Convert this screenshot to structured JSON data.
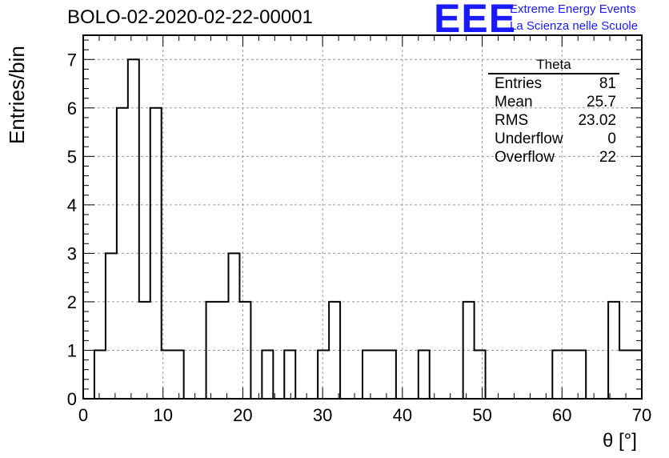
{
  "header": {
    "title": "BOLO-02-2020-02-22-00001",
    "logo_text": "EEE",
    "logo_line1": "Extreme Energy Events",
    "logo_line2": "La Scienza nelle Scuole"
  },
  "stats": {
    "title": "Theta",
    "rows": [
      {
        "label": "Entries",
        "value": "81"
      },
      {
        "label": "Mean",
        "value": "25.7"
      },
      {
        "label": "RMS",
        "value": "23.02"
      },
      {
        "label": "Underflow",
        "value": "0"
      },
      {
        "label": "Overflow",
        "value": "22"
      }
    ]
  },
  "colors": {
    "logo": "#1a1aff",
    "histogram": "#000000",
    "grid": "#999999"
  },
  "chart_data": {
    "type": "bar",
    "histogram": true,
    "xlabel": "θ [°]",
    "ylabel": "Entries/bin",
    "xlim": [
      0,
      70
    ],
    "ylim": [
      0,
      7.5
    ],
    "xticks": [
      0,
      10,
      20,
      30,
      40,
      50,
      60,
      70
    ],
    "yticks": [
      0,
      1,
      2,
      3,
      4,
      5,
      6,
      7
    ],
    "grid": true,
    "bin_edges": [
      1.4,
      2.8,
      4.2,
      5.6,
      7.0,
      8.4,
      9.8,
      11.2,
      12.6,
      14.0,
      15.4,
      16.8,
      18.2,
      19.6,
      21.0,
      22.4,
      23.8,
      25.2,
      26.6,
      28.0,
      29.4,
      30.8,
      32.2,
      33.6,
      35.0,
      36.4,
      37.8,
      39.2,
      40.6,
      42.0,
      43.4,
      44.8,
      46.2,
      47.6,
      49.0,
      50.4,
      51.8,
      53.2,
      54.6,
      56.0,
      57.4,
      58.8,
      60.2,
      61.6,
      63.0,
      64.4,
      65.8,
      67.2,
      68.6,
      70.0
    ],
    "counts": [
      1,
      3,
      6,
      7,
      2,
      6,
      1,
      1,
      0,
      0,
      2,
      2,
      3,
      2,
      0,
      1,
      0,
      1,
      0,
      0,
      1,
      2,
      0,
      0,
      1,
      1,
      1,
      0,
      0,
      1,
      0,
      0,
      0,
      2,
      1,
      0,
      0,
      0,
      0,
      0,
      0,
      1,
      1,
      1,
      0,
      0,
      2,
      1,
      1
    ]
  }
}
